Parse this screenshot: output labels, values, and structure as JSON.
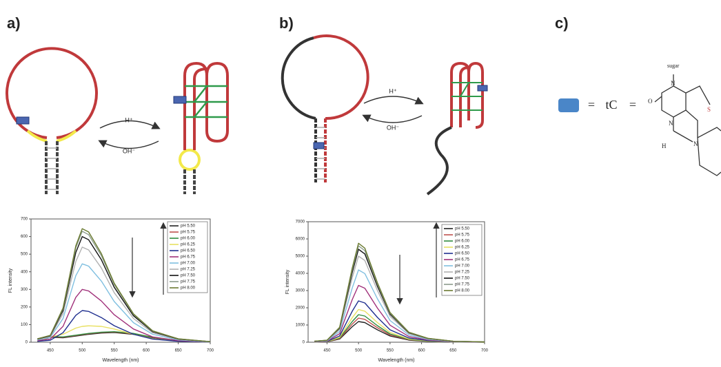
{
  "panels": {
    "a": {
      "label": "a)",
      "forward": "H⁺",
      "reverse": "OH⁻"
    },
    "b": {
      "label": "b)",
      "forward": "H⁺",
      "reverse": "OH⁻"
    },
    "c": {
      "label": "c)",
      "equals1": "=",
      "name": "tC",
      "equals2": "=",
      "atoms": [
        "sugar",
        "O",
        "N",
        "N",
        "S",
        "H",
        "N"
      ]
    }
  },
  "chart_data": [
    {
      "type": "line",
      "x_label": "Wavelength (nm)",
      "y_label": "FL intensity",
      "legend": "upper right",
      "x": [
        430,
        450,
        470,
        490,
        500,
        510,
        530,
        550,
        580,
        610,
        650,
        700
      ],
      "xlim": [
        420,
        700
      ],
      "xticks": [
        450,
        500,
        550,
        600,
        650,
        700
      ],
      "ylim": [
        0,
        700
      ],
      "yticks": [
        0,
        100,
        200,
        300,
        400,
        500,
        600,
        700
      ],
      "series": [
        {
          "name": "pH 5.50",
          "color": "#222222",
          "values": [
            5,
            28,
            25,
            35,
            40,
            45,
            52,
            55,
            45,
            25,
            8,
            2
          ]
        },
        {
          "name": "pH 5.75",
          "color": "#c0504d",
          "values": [
            5,
            30,
            28,
            38,
            43,
            48,
            55,
            58,
            48,
            27,
            9,
            2
          ]
        },
        {
          "name": "pH 6.00",
          "color": "#2e8b3e",
          "values": [
            5,
            32,
            30,
            40,
            45,
            50,
            57,
            60,
            50,
            28,
            9,
            2
          ]
        },
        {
          "name": "pH 6.25",
          "color": "#e8e060",
          "values": [
            5,
            30,
            45,
            80,
            90,
            93,
            90,
            75,
            45,
            20,
            6,
            1
          ]
        },
        {
          "name": "pH 6.50",
          "color": "#1f2f8f",
          "values": [
            5,
            11,
            54,
            153,
            180,
            175,
            140,
            94,
            45,
            18,
            5,
            1
          ]
        },
        {
          "name": "pH 6.75",
          "color": "#a0307a",
          "values": [
            9,
            18,
            90,
            255,
            300,
            291,
            234,
            156,
            75,
            30,
            9,
            2
          ]
        },
        {
          "name": "pH 7.00",
          "color": "#7fbfe0",
          "values": [
            13,
            27,
            134,
            378,
            445,
            432,
            347,
            231,
            111,
            45,
            13,
            2
          ]
        },
        {
          "name": "pH 7.25",
          "color": "#b0b0b0",
          "values": [
            16,
            32,
            162,
            459,
            540,
            524,
            421,
            281,
            135,
            54,
            16,
            3
          ]
        },
        {
          "name": "pH 7.50",
          "color": "#111111",
          "values": [
            18,
            36,
            180,
            510,
            600,
            582,
            468,
            312,
            150,
            60,
            18,
            3
          ]
        },
        {
          "name": "pH 7.75",
          "color": "#8a9a8a",
          "values": [
            19,
            38,
            189,
            536,
            630,
            611,
            491,
            328,
            158,
            63,
            19,
            3
          ]
        },
        {
          "name": "pH 8.00",
          "color": "#6a7a30",
          "values": [
            19,
            39,
            194,
            548,
            645,
            626,
            503,
            335,
            161,
            65,
            19,
            3
          ]
        }
      ]
    },
    {
      "type": "line",
      "x_label": "Wavelength (nm)",
      "y_label": "FL intensity",
      "legend": "upper right",
      "x": [
        430,
        450,
        470,
        490,
        500,
        510,
        530,
        550,
        580,
        610,
        650,
        700
      ],
      "xlim": [
        420,
        700
      ],
      "xticks": [
        450,
        500,
        550,
        600,
        650,
        700
      ],
      "ylim": [
        0,
        7000
      ],
      "yticks": [
        0,
        1000,
        2000,
        3000,
        4000,
        5000,
        6000,
        7000
      ],
      "series": [
        {
          "name": "pH 5.50",
          "color": "#222222",
          "values": [
            12,
            24,
            180,
            900,
            1200,
            1140,
            720,
            360,
            120,
            48,
            12,
            4
          ]
        },
        {
          "name": "pH 5.75",
          "color": "#c0504d",
          "values": [
            14,
            28,
            210,
            1050,
            1400,
            1330,
            840,
            420,
            140,
            56,
            14,
            4
          ]
        },
        {
          "name": "pH 6.00",
          "color": "#2e8b3e",
          "values": [
            16,
            32,
            240,
            1200,
            1600,
            1520,
            960,
            480,
            160,
            64,
            16,
            5
          ]
        },
        {
          "name": "pH 6.25",
          "color": "#e8e060",
          "values": [
            19,
            38,
            285,
            1425,
            1900,
            1805,
            1140,
            570,
            190,
            76,
            19,
            6
          ]
        },
        {
          "name": "pH 6.50",
          "color": "#1f2f8f",
          "values": [
            24,
            48,
            360,
            1800,
            2400,
            2280,
            1440,
            720,
            240,
            96,
            24,
            7
          ]
        },
        {
          "name": "pH 6.75",
          "color": "#a0307a",
          "values": [
            33,
            66,
            495,
            2475,
            3300,
            3135,
            1980,
            990,
            330,
            132,
            33,
            10
          ]
        },
        {
          "name": "pH 7.00",
          "color": "#7fbfe0",
          "values": [
            42,
            84,
            630,
            3150,
            4200,
            3990,
            2520,
            1260,
            420,
            168,
            42,
            13
          ]
        },
        {
          "name": "pH 7.25",
          "color": "#b0b0b0",
          "values": [
            50,
            100,
            750,
            3750,
            5000,
            4750,
            3000,
            1500,
            500,
            200,
            50,
            15
          ]
        },
        {
          "name": "pH 7.50",
          "color": "#111111",
          "values": [
            54,
            108,
            810,
            4050,
            5400,
            5130,
            3240,
            1620,
            540,
            216,
            54,
            16
          ]
        },
        {
          "name": "pH 7.75",
          "color": "#8a9a8a",
          "values": [
            56,
            112,
            840,
            4200,
            5600,
            5320,
            3360,
            1680,
            560,
            224,
            56,
            17
          ]
        },
        {
          "name": "pH 8.00",
          "color": "#6a7a30",
          "values": [
            58,
            115,
            863,
            4313,
            5750,
            5463,
            3450,
            1725,
            575,
            230,
            58,
            17
          ]
        }
      ]
    }
  ]
}
